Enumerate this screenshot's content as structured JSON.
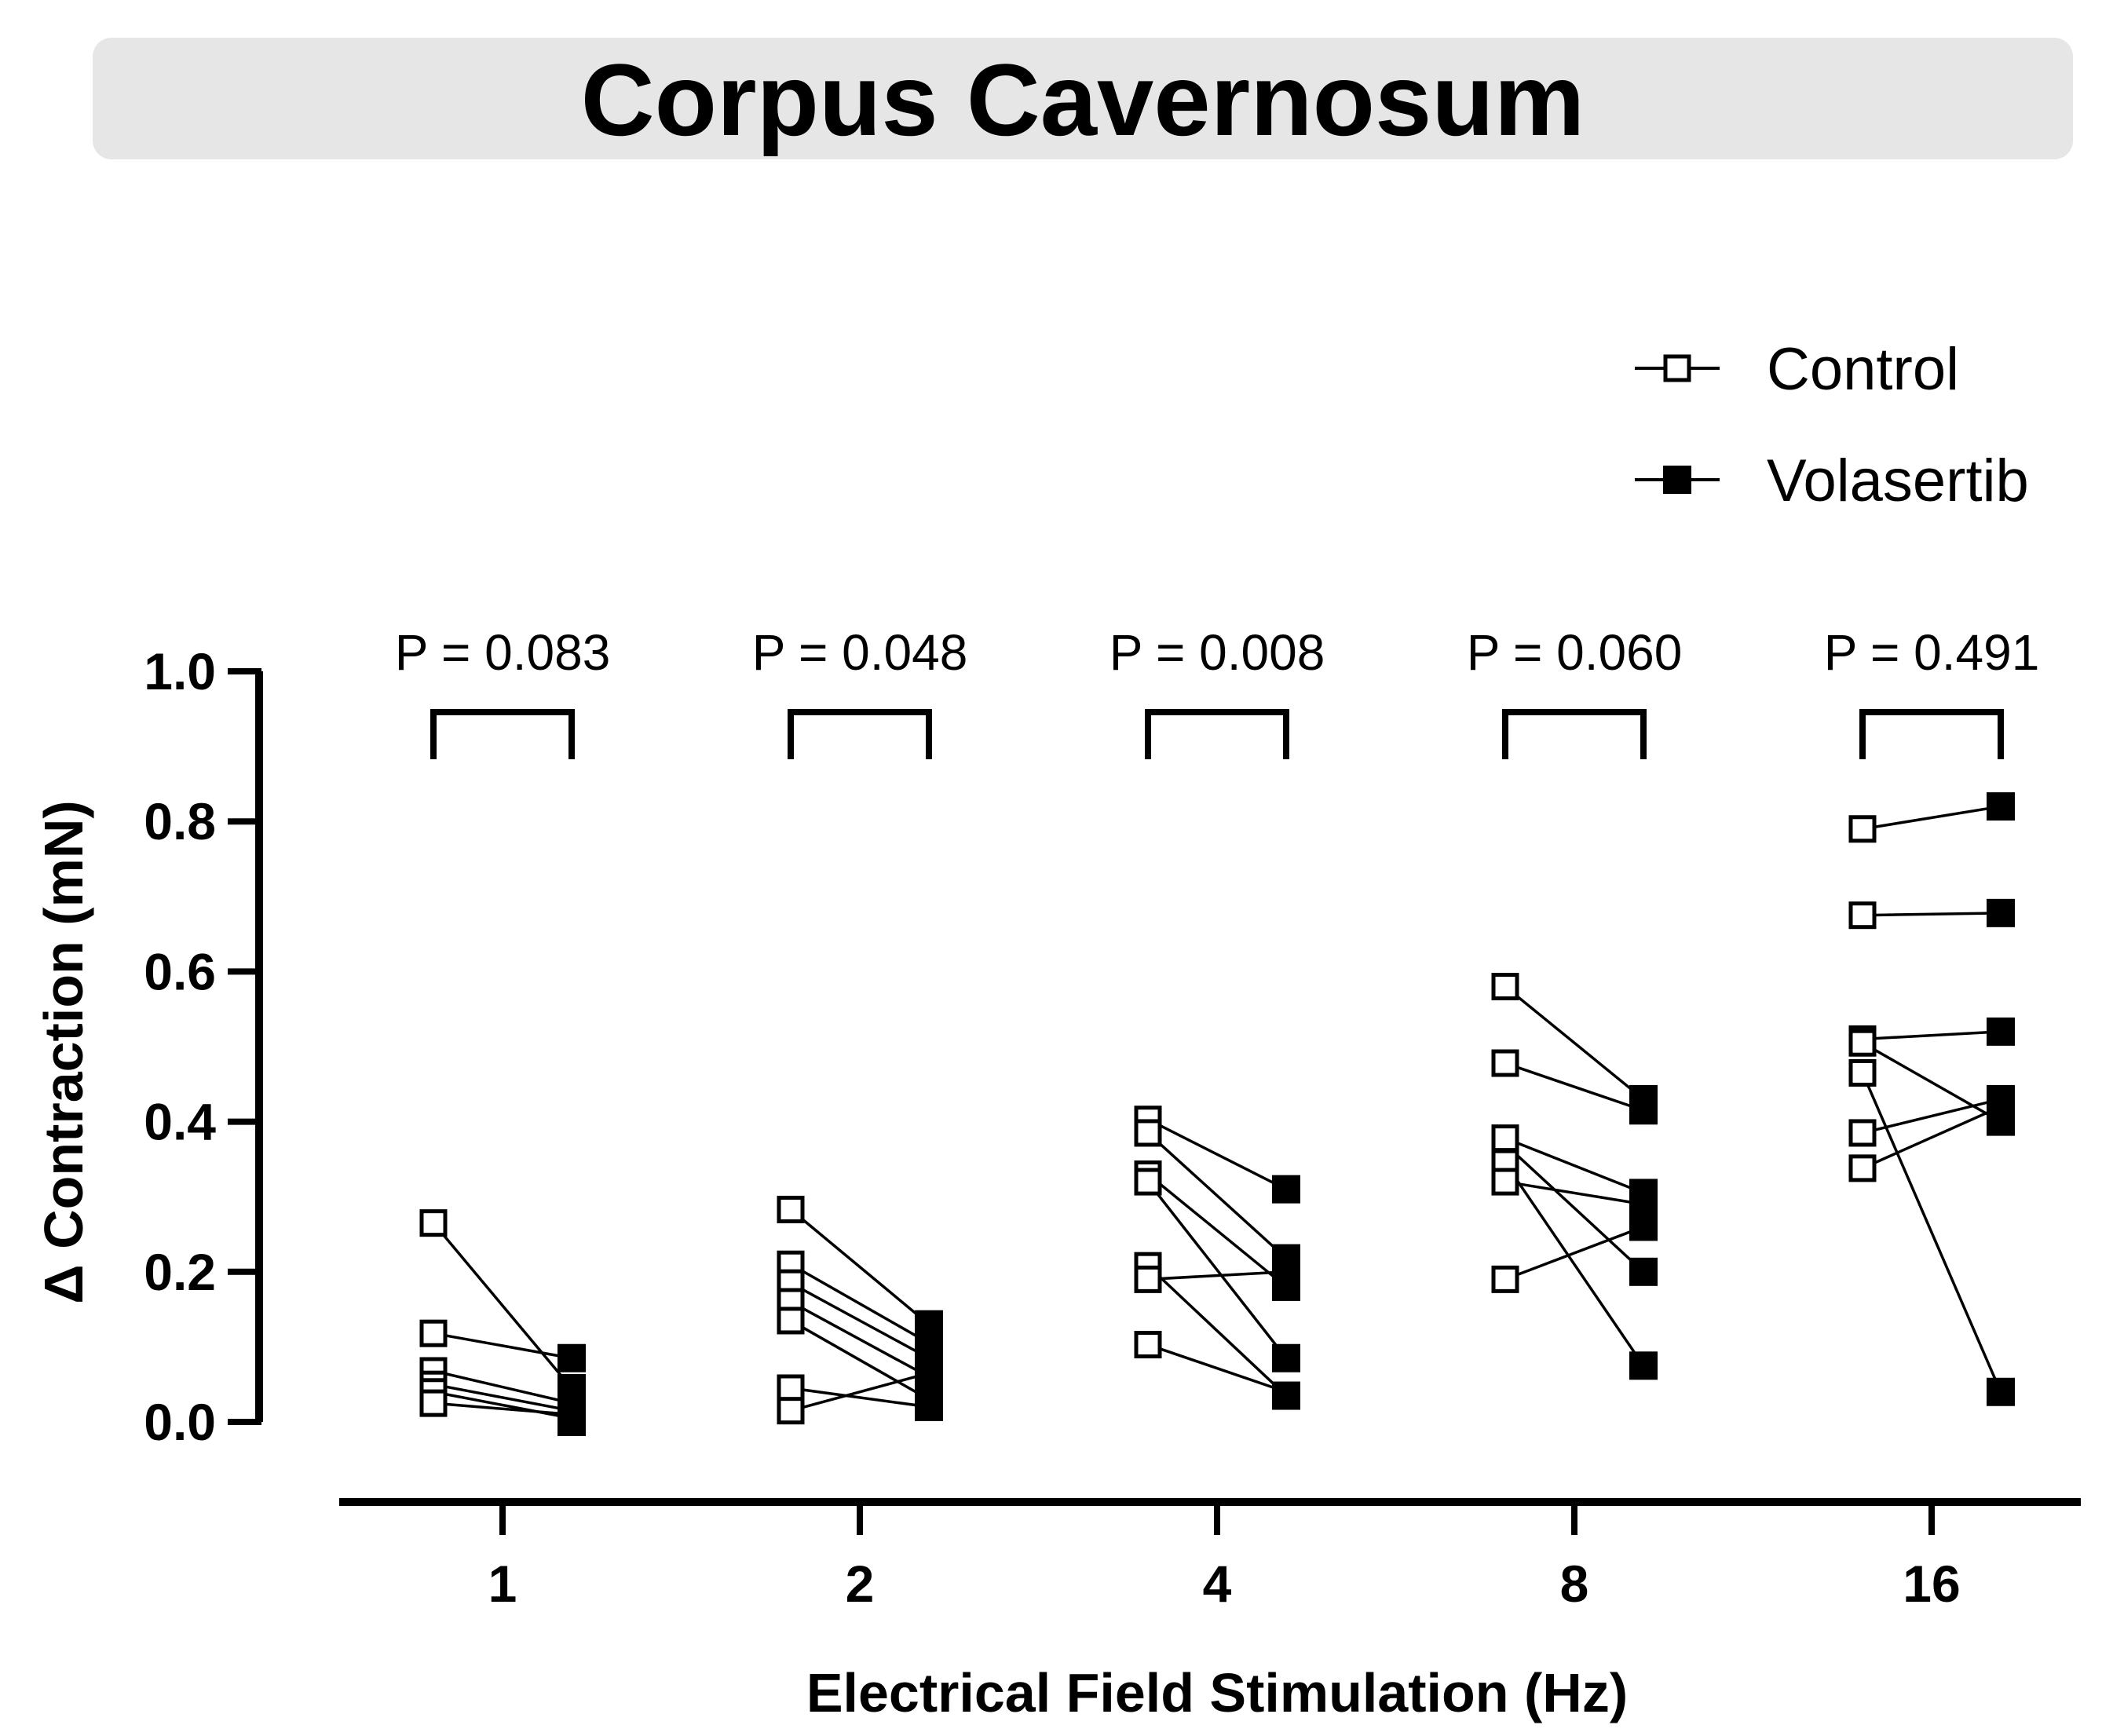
{
  "chart_data": {
    "type": "scatter",
    "title": "Corpus Cavernosum",
    "xlabel": "Electrical Field Stimulation (Hz)",
    "ylabel": "Δ Contraction (mN)",
    "categories": [
      "1",
      "2",
      "4",
      "8",
      "16"
    ],
    "ylim": [
      0,
      1.0
    ],
    "yticks": [
      "0.0",
      "0.2",
      "0.4",
      "0.6",
      "0.8",
      "1.0"
    ],
    "legend_position": "top-right",
    "grid": false,
    "series": [
      {
        "name": "Control",
        "marker": "open-square",
        "values": [
          [
            0.265,
            0.118,
            0.068,
            0.05,
            0.04,
            0.025
          ],
          [
            0.283,
            0.21,
            0.185,
            0.16,
            0.135,
            0.045,
            0.015
          ],
          [
            0.403,
            0.385,
            0.33,
            0.32,
            0.208,
            0.19,
            0.103
          ],
          [
            0.58,
            0.478,
            0.378,
            0.345,
            0.32,
            0.19
          ],
          [
            0.79,
            0.675,
            0.51,
            0.505,
            0.465,
            0.385,
            0.338
          ]
        ]
      },
      {
        "name": "Volasertib",
        "marker": "filled-square",
        "values": [
          [
            0.085,
            0.045,
            0.025,
            0.015,
            0.005,
            0.0
          ],
          [
            0.13,
            0.105,
            0.085,
            0.06,
            0.045,
            0.03,
            0.02
          ],
          [
            0.31,
            0.218,
            0.18,
            0.2,
            0.085,
            0.035,
            0.21
          ],
          [
            0.43,
            0.415,
            0.305,
            0.29,
            0.26,
            0.2,
            0.075
          ],
          [
            0.82,
            0.678,
            0.52,
            0.43,
            0.4,
            0.42,
            0.04
          ]
        ]
      }
    ],
    "pairs": [
      [
        [
          0.265,
          0.045
        ],
        [
          0.118,
          0.085
        ],
        [
          0.068,
          0.025
        ],
        [
          0.05,
          0.015
        ],
        [
          0.04,
          0.005
        ],
        [
          0.025,
          0.01
        ]
      ],
      [
        [
          0.283,
          0.13
        ],
        [
          0.21,
          0.105
        ],
        [
          0.185,
          0.085
        ],
        [
          0.16,
          0.06
        ],
        [
          0.135,
          0.03
        ],
        [
          0.045,
          0.02
        ],
        [
          0.015,
          0.065
        ]
      ],
      [
        [
          0.403,
          0.31
        ],
        [
          0.385,
          0.218
        ],
        [
          0.33,
          0.18
        ],
        [
          0.32,
          0.085
        ],
        [
          0.208,
          0.035
        ],
        [
          0.19,
          0.2
        ],
        [
          0.103,
          0.04
        ]
      ],
      [
        [
          0.58,
          0.43
        ],
        [
          0.478,
          0.415
        ],
        [
          0.378,
          0.305
        ],
        [
          0.345,
          0.075
        ],
        [
          0.32,
          0.29
        ],
        [
          0.19,
          0.26
        ],
        [
          0.37,
          0.2
        ]
      ],
      [
        [
          0.79,
          0.82
        ],
        [
          0.675,
          0.678
        ],
        [
          0.51,
          0.52
        ],
        [
          0.505,
          0.4
        ],
        [
          0.465,
          0.04
        ],
        [
          0.385,
          0.43
        ],
        [
          0.338,
          0.42
        ]
      ]
    ],
    "annotations": [
      "P = 0.083",
      "P = 0.048",
      "P = 0.008",
      "P = 0.060",
      "P = 0.491"
    ]
  }
}
